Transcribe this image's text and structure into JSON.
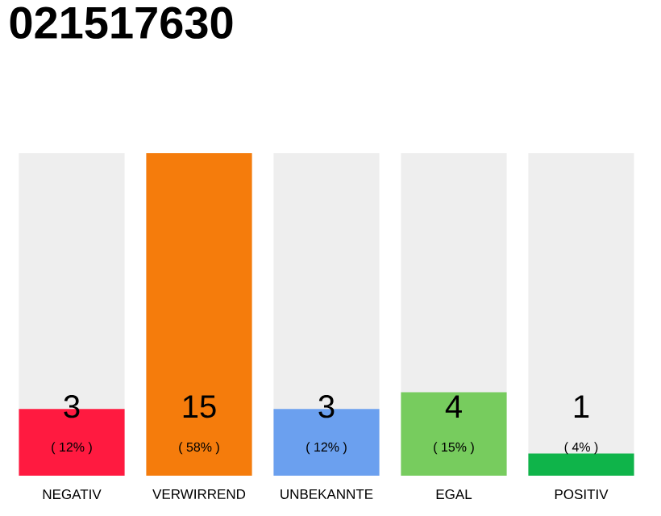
{
  "chart_data": {
    "type": "bar",
    "title": "021517630",
    "categories": [
      "NEGATIV",
      "VERWIRREND",
      "UNBEKANNTE",
      "EGAL",
      "POSITIV"
    ],
    "values": [
      12,
      58,
      12,
      15,
      4
    ],
    "colors": [
      "#ff1a40",
      "#f57c0c",
      "#6ba0ef",
      "#77cc5e",
      "#0fb44a"
    ],
    "value_labels": [
      "( 12% )",
      "( 58% )",
      "( 12% )",
      "( 15% )",
      "( 4% )"
    ],
    "annotations": [
      "3",
      "15",
      "3",
      "4",
      "1"
    ]
  }
}
